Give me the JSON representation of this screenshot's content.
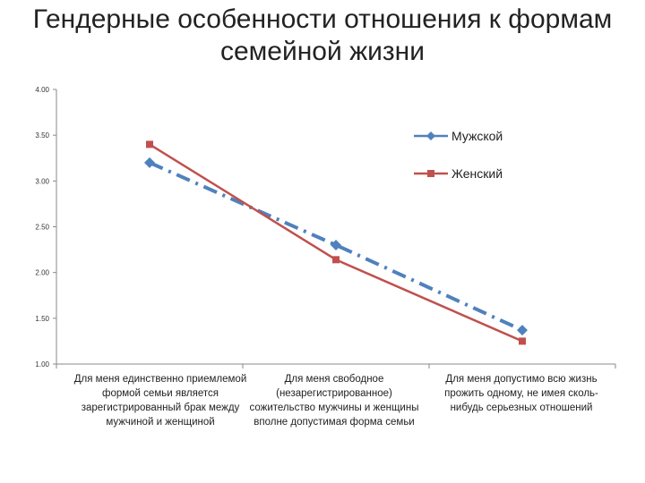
{
  "title_lines": [
    "Гендерные особенности отношения к формам",
    "семейной жизни"
  ],
  "chart_data": {
    "type": "line",
    "categories": [
      "Для меня единственно приемлемой формой семьи является зарегистрированный брак между мужчиной и женщиной",
      "Для меня свободное (незарегистрированное) сожительство мужчины и женщины вполне допустимая форма семьи",
      "Для меня допустимо всю жизнь прожить одному, не имея сколь-нибудь серьезных отношений"
    ],
    "series": [
      {
        "name": "Мужской",
        "values": [
          3.2,
          2.3,
          1.37
        ],
        "color": "#4F81BD",
        "marker": "diamond",
        "line_style": "dash-dot"
      },
      {
        "name": "Женский",
        "values": [
          3.4,
          2.14,
          1.25
        ],
        "color": "#C0504D",
        "marker": "square",
        "line_style": "solid"
      }
    ],
    "y_ticks": [
      "1.00",
      "1.50",
      "2.00",
      "2.50",
      "3.00",
      "3.50",
      "4.00"
    ],
    "ylim": [
      1,
      4
    ],
    "grid": false,
    "legend_position": "right"
  }
}
